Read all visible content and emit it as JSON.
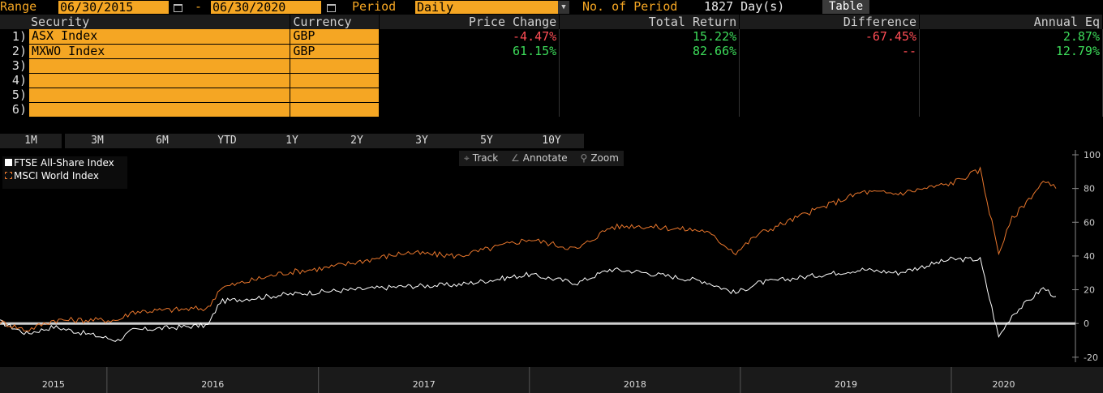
{
  "topbar": {
    "range_label": "Range",
    "start_date": "06/30/2015",
    "dash": "-",
    "end_date": "06/30/2020",
    "period_label": "Period",
    "period_value": "Daily",
    "num_period_label": "No. of Period",
    "num_period_value": "1827 Day(s)",
    "table_button": "Table"
  },
  "grid": {
    "headers": [
      "Security",
      "Currency",
      "Price Change",
      "Total Return",
      "Difference",
      "Annual Eq"
    ],
    "rows": [
      {
        "num": "1)",
        "security": "ASX Index",
        "currency": "GBP",
        "price_change": "-4.47%",
        "total_return": "15.22%",
        "difference": "-67.45%",
        "annual_eq": "2.87%"
      },
      {
        "num": "2)",
        "security": "MXWO Index",
        "currency": "GBP",
        "price_change": "61.15%",
        "total_return": "82.66%",
        "difference": "--",
        "annual_eq": "12.79%"
      },
      {
        "num": "3)",
        "security": "",
        "currency": "",
        "price_change": "",
        "total_return": "",
        "difference": "",
        "annual_eq": ""
      },
      {
        "num": "4)",
        "security": "",
        "currency": "",
        "price_change": "",
        "total_return": "",
        "difference": "",
        "annual_eq": ""
      },
      {
        "num": "5)",
        "security": "",
        "currency": "",
        "price_change": "",
        "total_return": "",
        "difference": "",
        "annual_eq": ""
      },
      {
        "num": "6)",
        "security": "",
        "currency": "",
        "price_change": "",
        "total_return": "",
        "difference": "",
        "annual_eq": ""
      }
    ]
  },
  "periods": [
    "1M",
    "3M",
    "6M",
    "YTD",
    "1Y",
    "2Y",
    "3Y",
    "5Y",
    "10Y"
  ],
  "tools": {
    "track": "Track",
    "annotate": "Annotate",
    "zoom": "Zoom"
  },
  "colors": {
    "accent": "#f5a623",
    "positive": "#3ddc5a",
    "negative": "#ff4d55",
    "ftse": "#ffffff",
    "msci": "#e8762c"
  },
  "chart_data": {
    "type": "line",
    "x_ticks": [
      "2015",
      "2016",
      "2017",
      "2018",
      "2019",
      "2020"
    ],
    "y_ticks": [
      "100",
      "80",
      "60",
      "40",
      "20",
      "0",
      "-20"
    ],
    "ylim": [
      -22,
      100
    ],
    "xlim": [
      "2015-06-30",
      "2020-06-30"
    ],
    "series": [
      {
        "name": "FTSE All-Share Index",
        "x": [
          "2015-06-30",
          "2015-08-15",
          "2015-10-01",
          "2016-01-20",
          "2016-02-15",
          "2016-06-24",
          "2016-07-15",
          "2016-11-01",
          "2017-01-15",
          "2017-06-01",
          "2017-09-01",
          "2017-12-31",
          "2018-03-25",
          "2018-05-20",
          "2018-07-01",
          "2018-10-31",
          "2018-12-24",
          "2019-02-01",
          "2019-05-01",
          "2019-07-31",
          "2019-10-01",
          "2019-12-31",
          "2020-02-20",
          "2020-03-23",
          "2020-04-15",
          "2020-06-08",
          "2020-06-30"
        ],
        "y": [
          1,
          -6,
          -2,
          -10,
          -4,
          -1,
          13,
          17,
          19,
          22,
          23,
          29,
          24,
          32,
          31,
          25,
          18,
          24,
          28,
          32,
          30,
          38,
          38,
          -8,
          5,
          21,
          16
        ]
      },
      {
        "name": "MSCI World Index",
        "x": [
          "2015-06-30",
          "2015-08-15",
          "2015-10-01",
          "2016-01-20",
          "2016-02-15",
          "2016-06-24",
          "2016-07-15",
          "2016-11-01",
          "2017-01-15",
          "2017-06-01",
          "2017-09-01",
          "2017-12-31",
          "2018-03-25",
          "2018-05-20",
          "2018-07-01",
          "2018-10-31",
          "2018-12-24",
          "2019-02-01",
          "2019-05-01",
          "2019-07-31",
          "2019-10-01",
          "2019-12-31",
          "2020-02-20",
          "2020-03-23",
          "2020-04-15",
          "2020-06-08",
          "2020-06-30"
        ],
        "y": [
          1,
          -4,
          2,
          2,
          7,
          9,
          21,
          30,
          33,
          42,
          40,
          50,
          44,
          57,
          58,
          55,
          42,
          53,
          66,
          78,
          77,
          83,
          91,
          42,
          62,
          84,
          80
        ]
      }
    ]
  }
}
